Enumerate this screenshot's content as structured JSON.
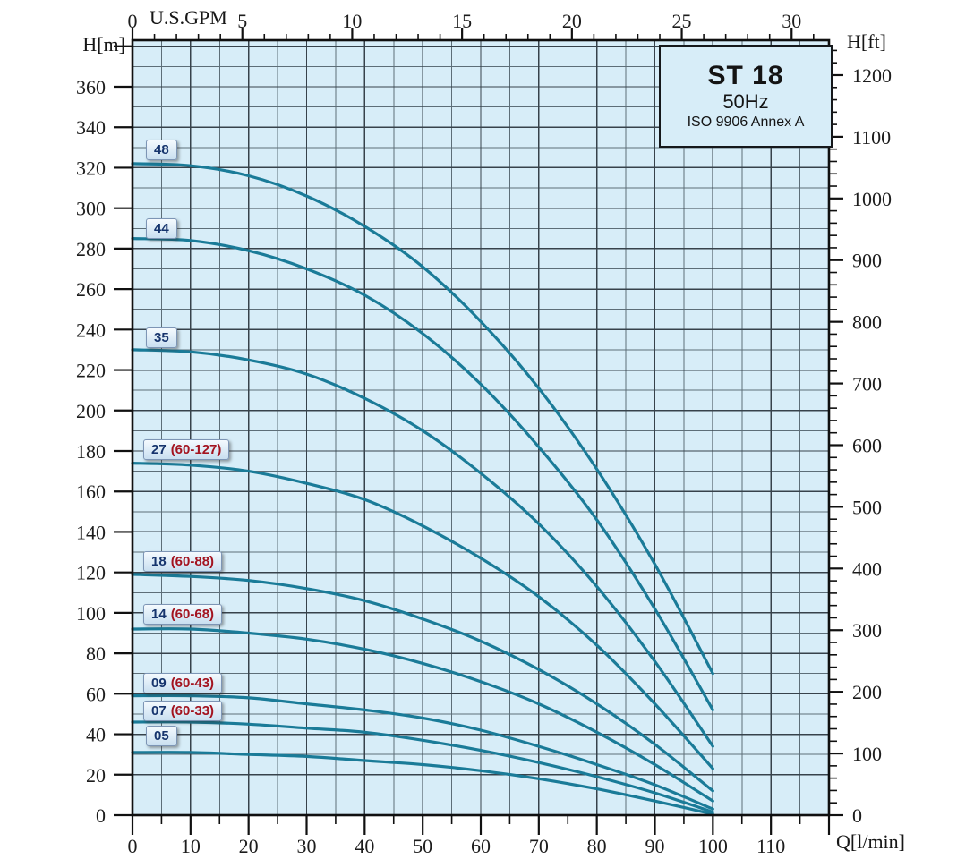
{
  "title_box": {
    "model": "ST 18",
    "frequency": "50Hz",
    "standard": "ISO 9906 Annex A"
  },
  "axes": {
    "left_title": "H[m]",
    "right_title": "H[ft]",
    "top_title": "U.S.GPM",
    "bottom_title": "Q[l/min]"
  },
  "chart_data": {
    "type": "line",
    "title": "ST 18 pump performance curves, 50Hz, ISO 9906 Annex A",
    "xlabel": "Q[l/min]",
    "ylabel": "H[m]",
    "x_axis_bottom": {
      "label": "Q[l/min]",
      "min": 0,
      "max": 120,
      "labeled_ticks": [
        0,
        10,
        20,
        30,
        40,
        50,
        60,
        70,
        80,
        90,
        100,
        110
      ],
      "minor_step": 5
    },
    "x_axis_top": {
      "label": "U.S.GPM",
      "min": 0,
      "max": 31,
      "labeled_ticks": [
        0,
        5,
        10,
        15,
        20,
        25,
        30
      ],
      "minor_step": 1,
      "lmin_per_gpm": 3.78541
    },
    "y_axis_left": {
      "label": "H[m]",
      "min": 0,
      "max": 383,
      "labeled_ticks": [
        360,
        340,
        320,
        300,
        280,
        260,
        240,
        220,
        200,
        180,
        160,
        140,
        120,
        100,
        80,
        60,
        40,
        20,
        0
      ],
      "tick_step": 20,
      "grid_minor_step": 10,
      "grid_major_step": 20
    },
    "y_axis_right": {
      "label": "H[ft]",
      "min": 0,
      "max": 1246,
      "labeled_ticks": [
        1200,
        1100,
        1000,
        900,
        800,
        700,
        600,
        500,
        400,
        300,
        200,
        100,
        0
      ],
      "minor_step": 20,
      "m_per_ft": 0.3048
    },
    "grid": true,
    "legend_position": "on-curve-labels",
    "curve_color": "#1a7b98",
    "flow_lmin": [
      0,
      10,
      20,
      30,
      40,
      50,
      60,
      70,
      80,
      90,
      100
    ],
    "series": [
      {
        "name": "48",
        "label_stages": "48",
        "label_range": "",
        "head_m": [
          322,
          321,
          316,
          306,
          291,
          271,
          244,
          211,
          171,
          124,
          70
        ]
      },
      {
        "name": "44",
        "label_stages": "44",
        "label_range": "",
        "head_m": [
          285,
          284,
          279,
          270,
          257,
          238,
          213,
          182,
          146,
          102,
          52
        ]
      },
      {
        "name": "35",
        "label_stages": "35",
        "label_range": "",
        "head_m": [
          230,
          229,
          225,
          218,
          206,
          190,
          169,
          144,
          113,
          76,
          34
        ]
      },
      {
        "name": "27 (60-127)",
        "label_stages": "27",
        "label_range": "(60-127)",
        "head_m": [
          174,
          173,
          170,
          164,
          156,
          143,
          127,
          108,
          84,
          55,
          23
        ]
      },
      {
        "name": "18 (60-88)",
        "label_stages": "18",
        "label_range": "(60-88)",
        "head_m": [
          119,
          118,
          116,
          112,
          106,
          97,
          86,
          72,
          55,
          35,
          12
        ]
      },
      {
        "name": "14 (60-68)",
        "label_stages": "14",
        "label_range": "(60-68)",
        "head_m": [
          92,
          92,
          90,
          87,
          82,
          75,
          66,
          55,
          41,
          25,
          7
        ]
      },
      {
        "name": "09 (60-43)",
        "label_stages": "09",
        "label_range": "(60-43)",
        "head_m": [
          59,
          59,
          58,
          55,
          52,
          48,
          42,
          34,
          25,
          15,
          3
        ]
      },
      {
        "name": "07 (60-33)",
        "label_stages": "07",
        "label_range": "(60-33)",
        "head_m": [
          46,
          46,
          45,
          43,
          41,
          37,
          32,
          26,
          19,
          11,
          1.5
        ]
      },
      {
        "name": "05",
        "label_stages": "05",
        "label_range": "",
        "head_m": [
          31,
          31,
          30,
          29,
          27,
          25,
          22,
          18,
          13,
          7,
          0.5
        ]
      }
    ]
  },
  "colors": {
    "plot_background": "#d7edf8",
    "grid_major": "#37424b",
    "grid_minor": "#5d6e78",
    "frame": "#101010",
    "curve": "#1a7b98",
    "label_text_stages": "#16346d",
    "label_text_range": "#a3131f"
  }
}
